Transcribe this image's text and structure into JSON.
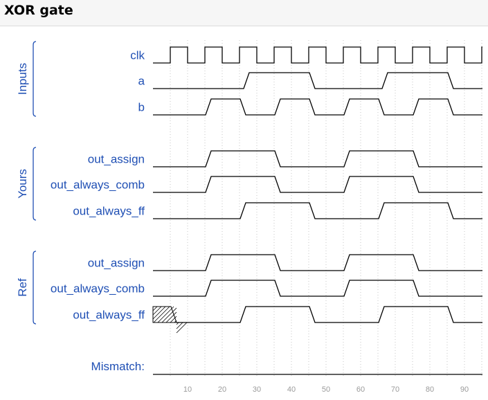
{
  "title": "XOR gate",
  "colors": {
    "label": "#1f4fb4",
    "wave": "#000000",
    "grid": "#c4c4c4",
    "tick": "#9a9a9a",
    "header_bg": "#f6f6f6"
  },
  "chart_data": {
    "type": "timing-diagram",
    "time_range": [
      0,
      95
    ],
    "ticks": [
      10,
      20,
      30,
      40,
      50,
      60,
      70,
      80,
      90
    ],
    "groups": [
      {
        "name": "Inputs",
        "signals": [
          "clk",
          "a",
          "b"
        ]
      },
      {
        "name": "Yours",
        "signals": [
          "out_assign",
          "out_always_comb",
          "out_always_ff"
        ]
      },
      {
        "name": "Ref",
        "signals": [
          "out_assign",
          "out_always_comb",
          "out_always_ff"
        ]
      }
    ],
    "signals": [
      {
        "name": "clk",
        "group": "Inputs",
        "clock": true,
        "period": 10,
        "first_rise": 5,
        "start": 0
      },
      {
        "name": "a",
        "group": "Inputs",
        "start": 0,
        "transitions": [
          [
            27,
            1
          ],
          [
            46,
            0
          ],
          [
            67,
            1
          ],
          [
            86,
            0
          ]
        ]
      },
      {
        "name": "b",
        "group": "Inputs",
        "start": 0,
        "transitions": [
          [
            16,
            1
          ],
          [
            26,
            0
          ],
          [
            36,
            1
          ],
          [
            46,
            0
          ],
          [
            56,
            1
          ],
          [
            66,
            0
          ],
          [
            76,
            1
          ],
          [
            86,
            0
          ]
        ]
      },
      {
        "name": "out_assign",
        "group": "Yours",
        "start": 0,
        "transitions": [
          [
            16,
            1
          ],
          [
            36,
            0
          ],
          [
            56,
            1
          ],
          [
            76,
            0
          ]
        ]
      },
      {
        "name": "out_always_comb",
        "group": "Yours",
        "start": 0,
        "transitions": [
          [
            16,
            1
          ],
          [
            36,
            0
          ],
          [
            56,
            1
          ],
          [
            76,
            0
          ]
        ]
      },
      {
        "name": "out_always_ff",
        "group": "Yours",
        "start": 0,
        "transitions": [
          [
            26,
            1
          ],
          [
            46,
            0
          ],
          [
            66,
            1
          ],
          [
            86,
            0
          ]
        ]
      },
      {
        "name": "out_assign",
        "group": "Ref",
        "start": 0,
        "transitions": [
          [
            16,
            1
          ],
          [
            36,
            0
          ],
          [
            56,
            1
          ],
          [
            76,
            0
          ]
        ]
      },
      {
        "name": "out_always_comb",
        "group": "Ref",
        "start": 0,
        "transitions": [
          [
            16,
            1
          ],
          [
            36,
            0
          ],
          [
            56,
            1
          ],
          [
            76,
            0
          ]
        ]
      },
      {
        "name": "out_always_ff",
        "group": "Ref",
        "start": "x",
        "undefined_until": 6,
        "transitions": [
          [
            6,
            0
          ],
          [
            26,
            1
          ],
          [
            46,
            0
          ],
          [
            66,
            1
          ],
          [
            86,
            0
          ]
        ]
      }
    ],
    "mismatch": {
      "label": "Mismatch:",
      "transitions": []
    }
  }
}
